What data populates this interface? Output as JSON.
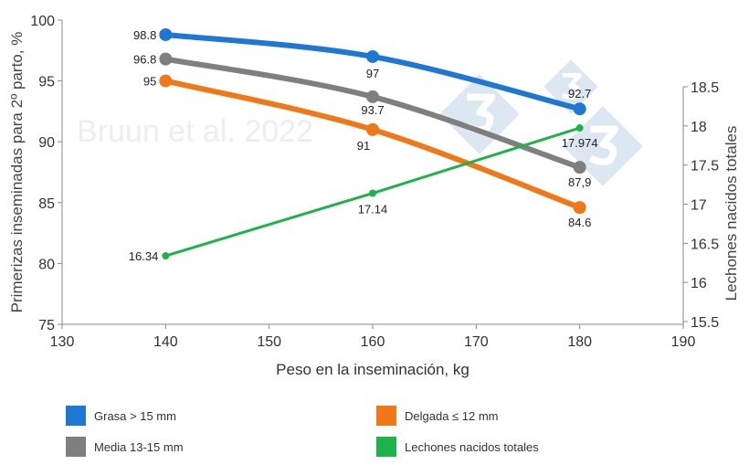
{
  "chart_data": {
    "type": "line",
    "xlabel": "Peso en la inseminación, kg",
    "ylabel": "Primerizas inseminadas para 2º parto, %",
    "y2label": "Lechones nacidos totales",
    "xlim": [
      130,
      190
    ],
    "ylim": [
      75,
      100
    ],
    "y2lim": [
      15.5,
      18.5
    ],
    "xticks": [
      "130",
      "140",
      "150",
      "160",
      "170",
      "180",
      "190"
    ],
    "yticks": [
      "75",
      "80",
      "85",
      "90",
      "95",
      "100"
    ],
    "y2ticks": [
      "15.5",
      "16",
      "16.5",
      "17",
      "17.5",
      "18",
      "18.5"
    ],
    "x": [
      140,
      160,
      180
    ],
    "grid": false,
    "legend_placement": "bottom",
    "watermark": "Bruun et al. 2022",
    "series": [
      {
        "name": "Grasa > 15 mm",
        "axis": "left",
        "color": "#1f77d4",
        "values": [
          98.8,
          97,
          92.7
        ],
        "labels": [
          "98.8",
          "97",
          "92.7"
        ]
      },
      {
        "name": "Media 13-15 mm",
        "axis": "left",
        "color": "#7f7f7f",
        "values": [
          96.8,
          93.7,
          87.9
        ],
        "labels": [
          "96.8",
          "93.7",
          "87,9"
        ]
      },
      {
        "name": "Delgada ≤ 12 mm",
        "axis": "left",
        "color": "#f07818",
        "values": [
          95,
          91,
          84.6
        ],
        "labels": [
          "95",
          "91",
          "84.6"
        ]
      },
      {
        "name": "Lechones nacidos totales",
        "axis": "right",
        "color": "#1db34a",
        "values": [
          16.34,
          17.14,
          17.974
        ],
        "labels": [
          "16.34",
          "17.14",
          "17.974"
        ]
      }
    ]
  }
}
